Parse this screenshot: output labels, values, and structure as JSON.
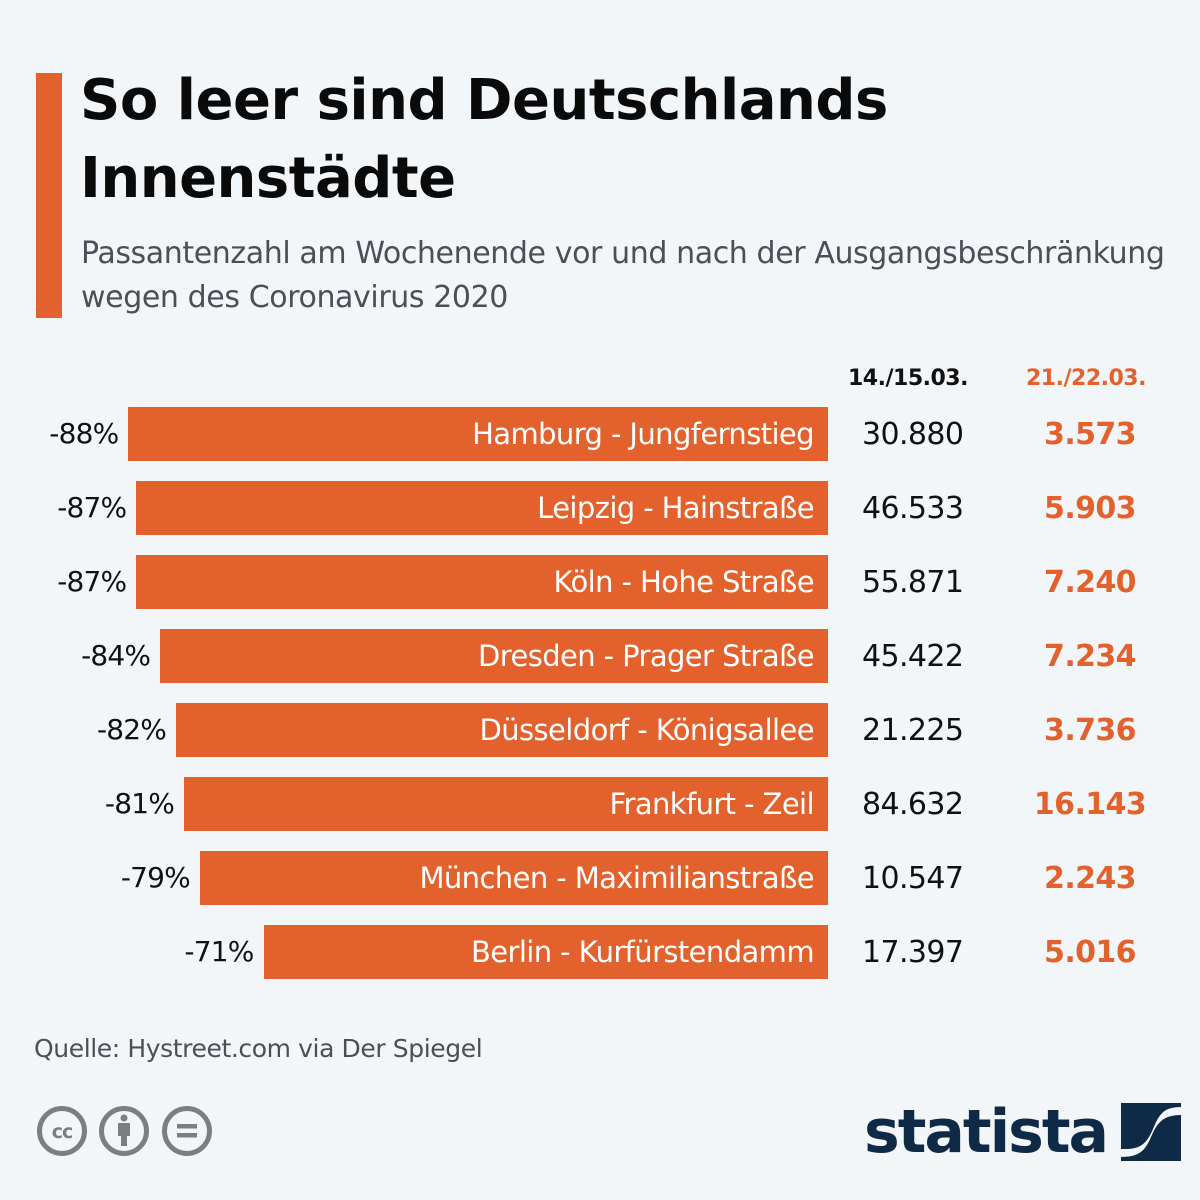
{
  "header": {
    "title": "So leer sind Deutschlands Innenstädte",
    "subtitle": "Passantenzahl am Wochenende vor und nach der Ausgangsbeschränkung wegen des Coronavirus 2020"
  },
  "colors": {
    "accent": "#e2612c",
    "background": "#f3f6f9",
    "logo": "#0f2a47",
    "icon_gray": "#7a807f"
  },
  "chart_data": {
    "type": "bar",
    "orientation": "horizontal",
    "title": "So leer sind Deutschlands Innenstädte",
    "subtitle": "Passantenzahl am Wochenende vor und nach der Ausgangsbeschränkung wegen des Coronavirus 2020",
    "xlabel": "",
    "ylabel": "",
    "bar_metric": "Veränderung der Passantenzahl (%)",
    "columns": {
      "before": "14./15.03.",
      "after": "21./22.03."
    },
    "categories": [
      "Hamburg - Jungfernstieg",
      "Leipzig - Hainstraße",
      "Köln - Hohe Straße",
      "Dresden - Prager Straße",
      "Düsseldorf - Königsallee",
      "Frankfurt - Zeil",
      "München - Maximilianstraße",
      "Berlin - Kurfürstendamm"
    ],
    "values": [
      -88,
      -87,
      -87,
      -84,
      -82,
      -81,
      -79,
      -71
    ],
    "value_labels": [
      "-88%",
      "-87%",
      "-87%",
      "-84%",
      "-82%",
      "-81%",
      "-79%",
      "-71%"
    ],
    "series": [
      {
        "name": "14./15.03.",
        "values": [
          30880,
          46533,
          55871,
          45422,
          21225,
          84632,
          10547,
          17397
        ],
        "labels": [
          "30.880",
          "46.533",
          "55.871",
          "45.422",
          "21.225",
          "84.632",
          "10.547",
          "17.397"
        ]
      },
      {
        "name": "21./22.03.",
        "values": [
          3573,
          5903,
          7240,
          7234,
          3736,
          16143,
          2243,
          5016
        ],
        "labels": [
          "3.573",
          "5.903",
          "7.240",
          "7.234",
          "3.736",
          "16.143",
          "2.243",
          "5.016"
        ]
      }
    ],
    "xlim": [
      0,
      100
    ],
    "grid": false,
    "legend": "none"
  },
  "footer": {
    "source": "Quelle: Hystreet.com via Der Spiegel",
    "license_icons": [
      "cc-icon",
      "by-attribution-icon",
      "no-derivatives-icon"
    ],
    "logo_text": "statista"
  }
}
